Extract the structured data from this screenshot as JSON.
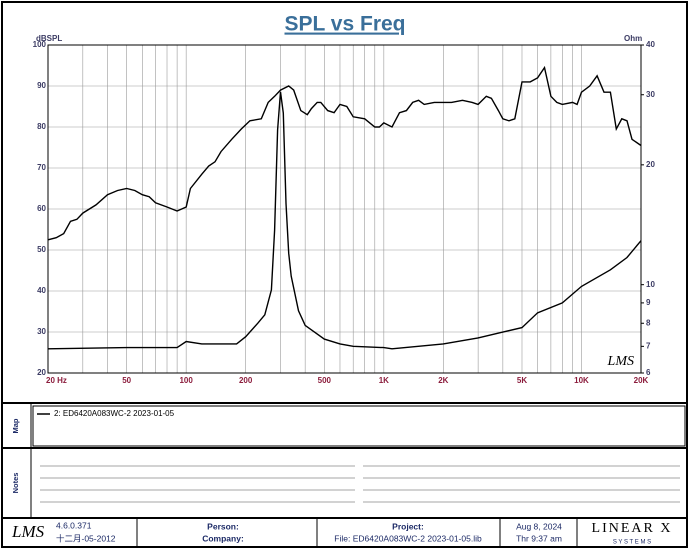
{
  "chart_data": {
    "type": "line",
    "title": "SPL vs Freq",
    "y_label": "dBSPL",
    "y2_label": "Ohm",
    "watermark": "LMS",
    "xscale": "log",
    "y2scale": "log",
    "grid": true,
    "xlim": [
      20,
      20000
    ],
    "xticks": [
      {
        "value": 20,
        "label": "20 Hz"
      },
      50,
      100,
      200,
      500,
      {
        "value": 1000,
        "label": "1K"
      },
      {
        "value": 2000,
        "label": "2K"
      },
      {
        "value": 5000,
        "label": "5K"
      },
      {
        "value": 10000,
        "label": "10K"
      },
      {
        "value": 20000,
        "label": "20K"
      }
    ],
    "xminorticks": [
      30,
      40,
      60,
      70,
      80,
      90,
      300,
      400,
      600,
      700,
      800,
      900,
      3000,
      4000,
      6000,
      7000,
      8000,
      9000
    ],
    "ylim": [
      20,
      100
    ],
    "yticks": [
      20,
      30,
      40,
      50,
      60,
      70,
      80,
      90,
      100
    ],
    "y2lim": [
      6,
      40
    ],
    "y2ticks": [
      6,
      7,
      8,
      9,
      10,
      20,
      30,
      40
    ],
    "series": [
      {
        "name": "2: ED6420A083WC-2 2023-01-05",
        "color": "#000000",
        "x": [
          20,
          22,
          24,
          26,
          28,
          30,
          35,
          40,
          45,
          50,
          55,
          60,
          65,
          70,
          80,
          90,
          100,
          105,
          120,
          130,
          140,
          150,
          170,
          190,
          210,
          240,
          260,
          280,
          300,
          330,
          350,
          380,
          410,
          430,
          460,
          480,
          520,
          560,
          600,
          650,
          700,
          800,
          900,
          950,
          1000,
          1100,
          1200,
          1300,
          1400,
          1500,
          1600,
          1800,
          2200,
          2500,
          2800,
          3000,
          3300,
          3500,
          3800,
          4000,
          4300,
          4600,
          5000,
          5500,
          6000,
          6500,
          7000,
          7500,
          8000,
          9000,
          9500,
          10000,
          11000,
          12000,
          13000,
          14000,
          15000,
          16000,
          17000,
          18000,
          20000
        ],
        "values": [
          52.5,
          53,
          54,
          57,
          57.5,
          59,
          61,
          63.5,
          64.5,
          65,
          64.5,
          63.5,
          63,
          61.5,
          60.5,
          59.5,
          60.5,
          65,
          68.5,
          70.5,
          71.5,
          74,
          77,
          79.5,
          81.5,
          82,
          86,
          87.5,
          89,
          90,
          89,
          84,
          83,
          84.5,
          86,
          86,
          84,
          83.5,
          85.5,
          85,
          82.5,
          82,
          80,
          80,
          81,
          80,
          83.5,
          84,
          86,
          86.5,
          85.5,
          86,
          86,
          86.5,
          86,
          85.5,
          87.5,
          87,
          84,
          82,
          81.5,
          82,
          91,
          91,
          92,
          94.5,
          87.5,
          86,
          85.5,
          86,
          85.5,
          88.5,
          90,
          92.5,
          88.5,
          88.5,
          79.5,
          82,
          81.5,
          77,
          75.5
        ]
      },
      {
        "color": "#000000",
        "axis": "y2",
        "x": [
          20,
          50,
          90,
          100,
          120,
          180,
          200,
          230,
          250,
          270,
          280,
          290,
          300,
          310,
          320,
          330,
          340,
          370,
          400,
          500,
          600,
          700,
          1000,
          1100,
          2000,
          3000,
          4000,
          5000,
          6000,
          8000,
          10000,
          14000,
          17000,
          20000
        ],
        "values": [
          6.9,
          6.95,
          6.95,
          7.2,
          7.1,
          7.1,
          7.4,
          8.0,
          8.4,
          9.7,
          13.7,
          24.5,
          30.5,
          27,
          16,
          12,
          10.5,
          8.6,
          7.9,
          7.3,
          7.1,
          7.0,
          6.95,
          6.9,
          7.1,
          7.35,
          7.6,
          7.8,
          8.5,
          9,
          9.9,
          10.9,
          11.7,
          12.9
        ]
      }
    ]
  },
  "panels": {
    "map": "Map",
    "notes": "Notes"
  },
  "footer": {
    "logo": "LMS",
    "version": "4.6.0.371",
    "build_date": "十二月-05-2012",
    "person": "Person:",
    "company": "Company:",
    "project": "Project:",
    "file": "File: ED6420A083WC-2 2023-01-05.lib",
    "date": "Aug  8, 2024",
    "time": "Thr  9:37 am",
    "brand": "LINEAR X",
    "brand_sub": "S Y S T E M S"
  }
}
